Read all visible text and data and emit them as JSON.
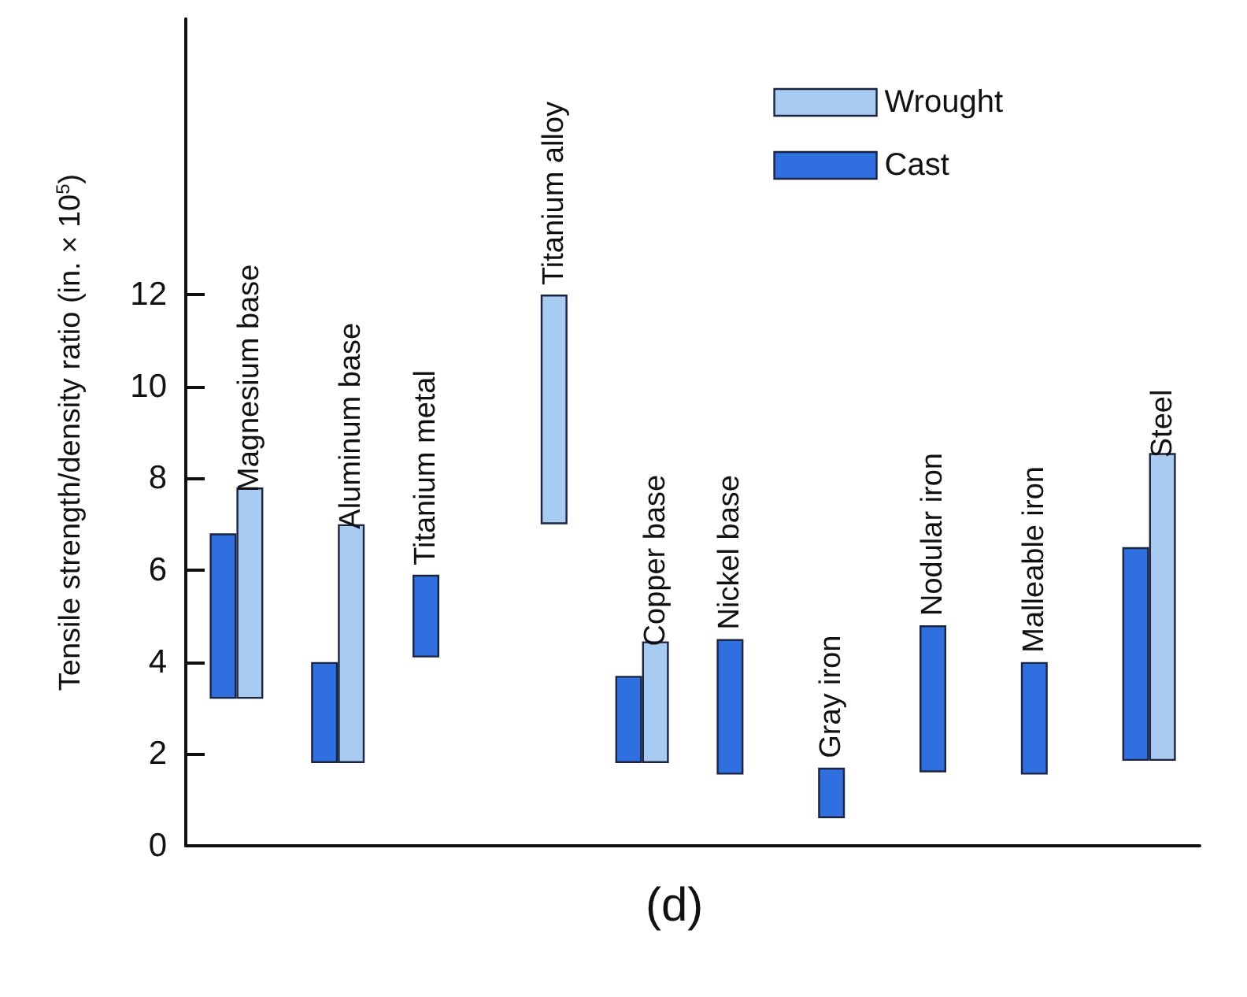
{
  "chart_data": {
    "type": "bar",
    "ylabel": "Tensile strength/density ratio (in. × 10$^{5}$)",
    "annotations": [
      "(d)"
    ],
    "categories": [
      "Magnesium base",
      "Aluminum base",
      "Titanium metal",
      "Titanium alloy",
      "Copper base",
      "Nickel base",
      "Gray iron",
      "Nodular iron",
      "Malleable iron",
      "Steel"
    ],
    "series": [
      {
        "name": "Cast",
        "color": "#2f6fdf",
        "base": [
          3.2,
          1.8,
          4.1,
          null,
          1.8,
          1.55,
          0.6,
          1.6,
          1.55,
          1.85
        ],
        "values": [
          3.6,
          2.2,
          1.8,
          null,
          1.9,
          2.95,
          1.1,
          3.2,
          2.45,
          4.65
        ]
      },
      {
        "name": "Wrought",
        "color": "#a8cbf2",
        "base": [
          3.2,
          1.8,
          null,
          7.0,
          1.8,
          null,
          null,
          null,
          null,
          1.85
        ],
        "values": [
          4.6,
          5.2,
          null,
          5.0,
          2.65,
          null,
          null,
          null,
          null,
          6.7
        ]
      }
    ],
    "ylim": [
      0,
      18
    ],
    "yticks": [
      0,
      2,
      4,
      6,
      8,
      10,
      12
    ],
    "tick_labels": "y",
    "grid": false,
    "legend": "top right"
  }
}
